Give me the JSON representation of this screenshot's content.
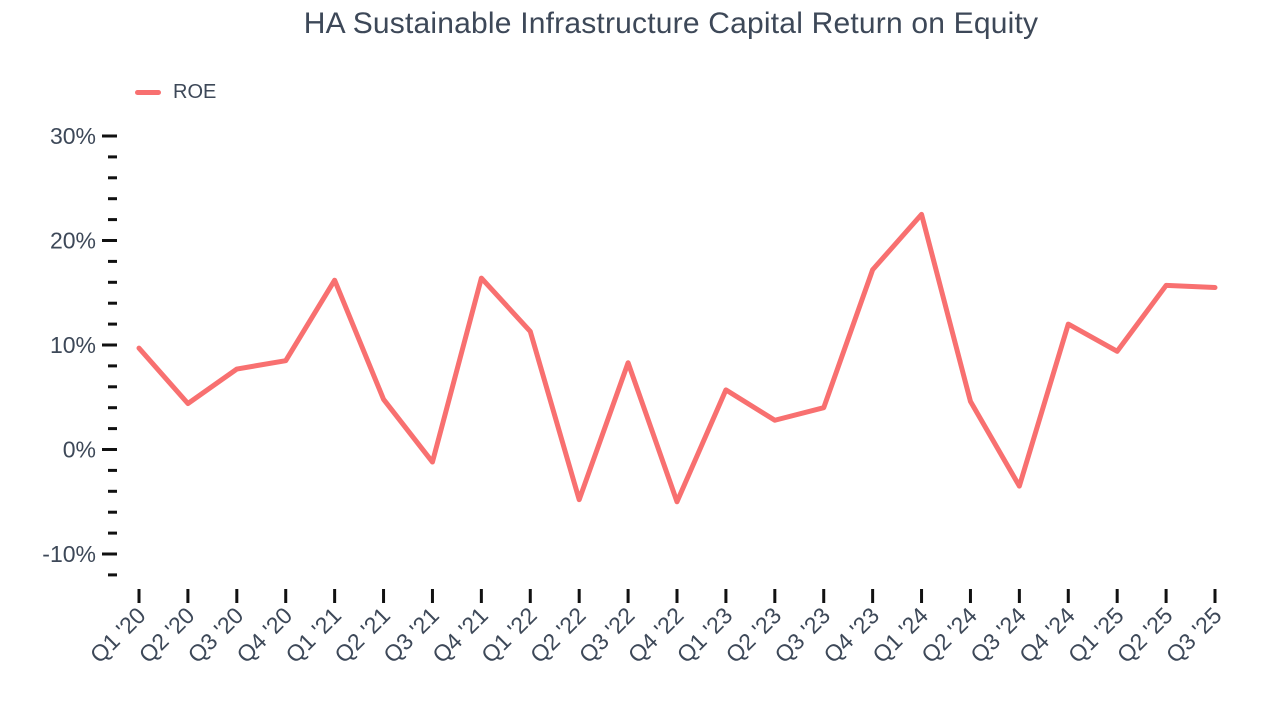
{
  "title": "HA Sustainable Infrastructure Capital Return on Equity",
  "colors": {
    "line": "#f87070",
    "text": "#3d4858",
    "tick": "#111111",
    "background": "#ffffff"
  },
  "legend": {
    "position": "top-left",
    "items": [
      {
        "label": "ROE",
        "color": "#f87070"
      }
    ]
  },
  "chart_data": {
    "type": "line",
    "title": "HA Sustainable Infrastructure Capital Return on Equity",
    "xlabel": "",
    "ylabel": "",
    "grid": false,
    "legend_position": "top-left",
    "categories": [
      "Q1 '20",
      "Q2 '20",
      "Q3 '20",
      "Q4 '20",
      "Q1 '21",
      "Q2 '21",
      "Q3 '21",
      "Q4 '21",
      "Q1 '22",
      "Q2 '22",
      "Q3 '22",
      "Q4 '22",
      "Q1 '23",
      "Q2 '23",
      "Q3 '23",
      "Q4 '23",
      "Q1 '24",
      "Q2 '24",
      "Q3 '24",
      "Q4 '24",
      "Q1 '25",
      "Q2 '25",
      "Q3 '25"
    ],
    "series": [
      {
        "name": "ROE",
        "color": "#f87070",
        "values": [
          9.7,
          4.4,
          7.7,
          8.5,
          16.2,
          4.8,
          -1.2,
          16.4,
          11.3,
          -4.8,
          8.3,
          -5.0,
          5.7,
          2.8,
          4.0,
          17.2,
          22.5,
          4.6,
          -3.5,
          12.0,
          9.4,
          15.7,
          15.5
        ]
      }
    ],
    "ylim": [
      -12,
      30
    ],
    "y_major_ticks": [
      30,
      20,
      10,
      0,
      -10
    ],
    "y_tick_labels": [
      "30%",
      "20%",
      "10%",
      "0%",
      "-10%"
    ],
    "y_minor_step": 2,
    "y_tick_suffix": "%"
  }
}
